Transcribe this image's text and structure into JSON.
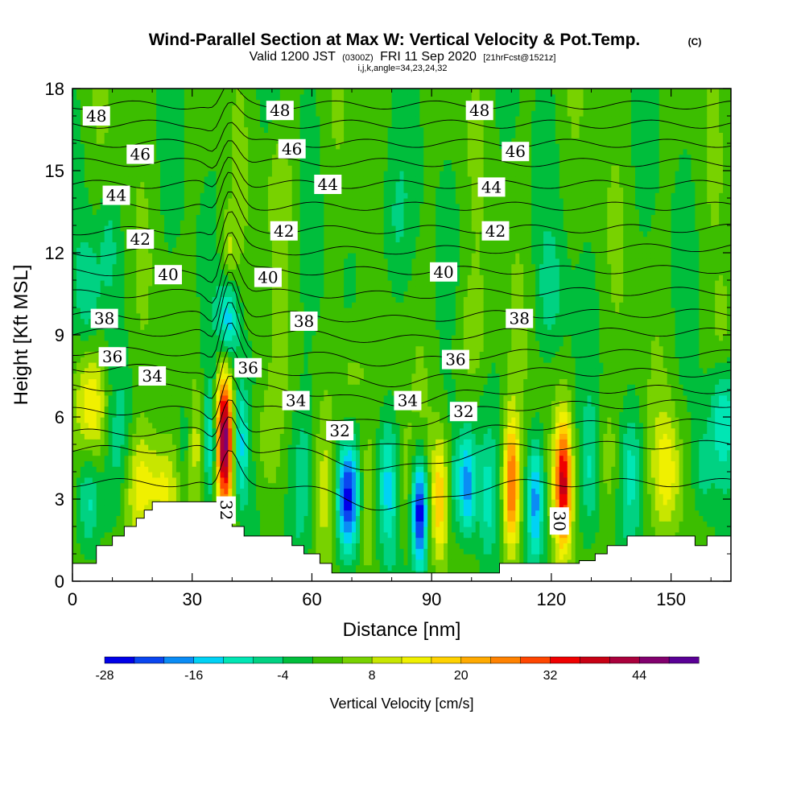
{
  "chart_data": {
    "type": "heatmap",
    "title": "Wind-Parallel Section at Max W: Vertical Velocity & Pot.Temp.",
    "copyright": "(C)",
    "subtitle_main": "Valid 1200 JST",
    "subtitle_utc": "(0300Z)",
    "subtitle_date": "FRI 11 Sep 2020",
    "subtitle_fcst": "[21hrFcst@1521z]",
    "subtitle2": "i,j,k,angle=34,23,24,32",
    "xlabel": "Distance [nm]",
    "ylabel": "Height [Kft MSL]",
    "xlim": [
      0,
      165
    ],
    "ylim": [
      0,
      18
    ],
    "x_ticks": [
      {
        "value": 0,
        "label": "0"
      },
      {
        "value": 30,
        "label": "30"
      },
      {
        "value": 60,
        "label": "60"
      },
      {
        "value": 90,
        "label": "90"
      },
      {
        "value": 120,
        "label": "120"
      },
      {
        "value": 150,
        "label": "150"
      }
    ],
    "y_ticks": [
      {
        "value": 0,
        "label": "0"
      },
      {
        "value": 3,
        "label": "3"
      },
      {
        "value": 6,
        "label": "6"
      },
      {
        "value": 9,
        "label": "9"
      },
      {
        "value": 12,
        "label": "12"
      },
      {
        "value": 15,
        "label": "15"
      },
      {
        "value": 18,
        "label": "18"
      }
    ],
    "colorbar": {
      "label": "Vertical Velocity [cm/s]",
      "min": -28,
      "max": 52,
      "step": 4,
      "tick_labels": [
        {
          "value": -28,
          "label": "-28"
        },
        {
          "value": -16,
          "label": "-16"
        },
        {
          "value": -4,
          "label": "-4"
        },
        {
          "value": 8,
          "label": "8"
        },
        {
          "value": 20,
          "label": "20"
        },
        {
          "value": 32,
          "label": "32"
        },
        {
          "value": 44,
          "label": "44"
        }
      ],
      "colors": [
        "#0000e8",
        "#0a46f0",
        "#0a8cf5",
        "#00d2f5",
        "#00e6b4",
        "#00d282",
        "#00be3c",
        "#3cbe00",
        "#78d200",
        "#c8e600",
        "#f0f000",
        "#ffd200",
        "#ffaa00",
        "#ff8200",
        "#ff4600",
        "#f00000",
        "#c80014",
        "#aa003c",
        "#82006e",
        "#5a0096"
      ]
    },
    "terrain": [
      [
        0,
        0.65
      ],
      [
        6,
        0.65
      ],
      [
        6,
        1.3
      ],
      [
        10,
        1.3
      ],
      [
        10,
        1.65
      ],
      [
        13,
        1.65
      ],
      [
        13,
        2.0
      ],
      [
        16,
        2.0
      ],
      [
        16,
        2.3
      ],
      [
        18,
        2.3
      ],
      [
        18,
        2.6
      ],
      [
        20,
        2.6
      ],
      [
        20,
        2.9
      ],
      [
        38,
        2.9
      ],
      [
        38,
        2.45
      ],
      [
        40,
        2.45
      ],
      [
        40,
        2.0
      ],
      [
        43,
        2.0
      ],
      [
        43,
        1.65
      ],
      [
        55,
        1.65
      ],
      [
        55,
        1.3
      ],
      [
        58,
        1.3
      ],
      [
        58,
        1.0
      ],
      [
        62,
        1.0
      ],
      [
        62,
        0.65
      ],
      [
        65,
        0.65
      ],
      [
        65,
        0.3
      ],
      [
        107,
        0.3
      ],
      [
        107,
        0.65
      ],
      [
        127,
        0.65
      ],
      [
        127,
        0.75
      ],
      [
        131,
        0.75
      ],
      [
        131,
        1.0
      ],
      [
        134,
        1.0
      ],
      [
        134,
        1.3
      ],
      [
        139,
        1.3
      ],
      [
        139,
        1.65
      ],
      [
        156,
        1.65
      ],
      [
        156,
        1.3
      ],
      [
        159,
        1.3
      ],
      [
        159,
        1.65
      ],
      [
        165,
        1.65
      ]
    ],
    "theta_lines": [
      {
        "value": 30,
        "y_left": 3.6,
        "y_right": 3.6
      },
      {
        "value": 31,
        "y_left": 4.8,
        "y_right": 5.0
      },
      {
        "value": 32,
        "y_left": 5.4,
        "y_right": 5.8
      },
      {
        "value": 33,
        "y_left": 6.2,
        "y_right": 6.5
      },
      {
        "value": 34,
        "y_left": 7.1,
        "y_right": 7.0
      },
      {
        "value": 35,
        "y_left": 7.8,
        "y_right": 7.6
      },
      {
        "value": 36,
        "y_left": 8.4,
        "y_right": 8.3
      },
      {
        "value": 37,
        "y_left": 9.1,
        "y_right": 9.1
      },
      {
        "value": 38,
        "y_left": 9.7,
        "y_right": 9.8
      },
      {
        "value": 39,
        "y_left": 10.5,
        "y_right": 10.6
      },
      {
        "value": 40,
        "y_left": 11.3,
        "y_right": 11.4
      },
      {
        "value": 41,
        "y_left": 12.0,
        "y_right": 12.2
      },
      {
        "value": 42,
        "y_left": 12.8,
        "y_right": 12.9
      },
      {
        "value": 43,
        "y_left": 13.7,
        "y_right": 13.7
      },
      {
        "value": 44,
        "y_left": 14.5,
        "y_right": 14.5
      },
      {
        "value": 45,
        "y_left": 15.3,
        "y_right": 15.3
      },
      {
        "value": 46,
        "y_left": 16.0,
        "y_right": 16.0
      },
      {
        "value": 47,
        "y_left": 16.7,
        "y_right": 16.7
      },
      {
        "value": 48,
        "y_left": 17.4,
        "y_right": 17.4
      }
    ],
    "theta_labels": [
      {
        "text": "48",
        "x": 6,
        "y": 17.0
      },
      {
        "text": "48",
        "x": 52,
        "y": 17.2
      },
      {
        "text": "48",
        "x": 102,
        "y": 17.2
      },
      {
        "text": "46",
        "x": 17,
        "y": 15.6
      },
      {
        "text": "46",
        "x": 55,
        "y": 15.8
      },
      {
        "text": "46",
        "x": 111,
        "y": 15.7
      },
      {
        "text": "44",
        "x": 11,
        "y": 14.1
      },
      {
        "text": "44",
        "x": 64,
        "y": 14.5
      },
      {
        "text": "44",
        "x": 105,
        "y": 14.4
      },
      {
        "text": "42",
        "x": 17,
        "y": 12.5
      },
      {
        "text": "42",
        "x": 53,
        "y": 12.8
      },
      {
        "text": "42",
        "x": 106,
        "y": 12.8
      },
      {
        "text": "40",
        "x": 24,
        "y": 11.2
      },
      {
        "text": "40",
        "x": 49,
        "y": 11.1
      },
      {
        "text": "40",
        "x": 93,
        "y": 11.3
      },
      {
        "text": "38",
        "x": 8,
        "y": 9.6
      },
      {
        "text": "38",
        "x": 58,
        "y": 9.5
      },
      {
        "text": "38",
        "x": 112,
        "y": 9.6
      },
      {
        "text": "36",
        "x": 10,
        "y": 8.2
      },
      {
        "text": "36",
        "x": 44,
        "y": 7.8
      },
      {
        "text": "36",
        "x": 96,
        "y": 8.1
      },
      {
        "text": "34",
        "x": 20,
        "y": 7.5
      },
      {
        "text": "34",
        "x": 56,
        "y": 6.6
      },
      {
        "text": "34",
        "x": 84,
        "y": 6.6
      },
      {
        "text": "32",
        "x": 67,
        "y": 5.5
      },
      {
        "text": "32",
        "x": 98,
        "y": 6.2
      },
      {
        "text": "32",
        "x": 38.5,
        "y": 2.6
      },
      {
        "text": "30",
        "x": 122,
        "y": 2.2
      }
    ],
    "w_features": [
      {
        "x": 38.0,
        "y": 5.2,
        "sx": 1.6,
        "sy": 1.8,
        "amp": 48
      },
      {
        "x": 35.0,
        "y": 5.0,
        "sx": 1.5,
        "sy": 1.6,
        "amp": -16
      },
      {
        "x": 42.0,
        "y": 5.0,
        "sx": 1.5,
        "sy": 1.6,
        "amp": -14
      },
      {
        "x": 39.0,
        "y": 9.5,
        "sx": 1.8,
        "sy": 1.2,
        "amp": -16
      },
      {
        "x": 39.0,
        "y": 12.0,
        "sx": 1.6,
        "sy": 1.0,
        "amp": 8
      },
      {
        "x": 31.0,
        "y": 5.0,
        "sx": 1.5,
        "sy": 1.5,
        "amp": 8
      },
      {
        "x": 28.0,
        "y": 5.2,
        "sx": 1.6,
        "sy": 1.5,
        "amp": -8
      },
      {
        "x": 17.0,
        "y": 3.5,
        "sx": 3.0,
        "sy": 1.5,
        "amp": 14
      },
      {
        "x": 23.0,
        "y": 3.3,
        "sx": 2.5,
        "sy": 1.2,
        "amp": 12
      },
      {
        "x": 5.0,
        "y": 6.5,
        "sx": 3.0,
        "sy": 1.5,
        "amp": 14
      },
      {
        "x": 4.0,
        "y": 3.0,
        "sx": 2.0,
        "sy": 1.5,
        "amp": -14
      },
      {
        "x": 4.0,
        "y": 10.5,
        "sx": 2.0,
        "sy": 1.5,
        "amp": -8
      },
      {
        "x": 12.0,
        "y": 5.0,
        "sx": 2.5,
        "sy": 1.8,
        "amp": -6
      },
      {
        "x": 48.0,
        "y": 5.0,
        "sx": 2.5,
        "sy": 1.8,
        "amp": 6
      },
      {
        "x": 58.0,
        "y": 4.0,
        "sx": 2.5,
        "sy": 2.0,
        "amp": -8
      },
      {
        "x": 63.0,
        "y": 3.5,
        "sx": 2.0,
        "sy": 1.8,
        "amp": 6
      },
      {
        "x": 69.0,
        "y": 3.0,
        "sx": 2.0,
        "sy": 1.4,
        "amp": -26
      },
      {
        "x": 74.0,
        "y": 3.2,
        "sx": 1.5,
        "sy": 1.5,
        "amp": 8
      },
      {
        "x": 79.0,
        "y": 3.5,
        "sx": 1.8,
        "sy": 1.6,
        "amp": -12
      },
      {
        "x": 83.0,
        "y": 3.5,
        "sx": 1.5,
        "sy": 1.6,
        "amp": 6
      },
      {
        "x": 87.0,
        "y": 2.5,
        "sx": 1.4,
        "sy": 1.4,
        "amp": -30
      },
      {
        "x": 92.0,
        "y": 3.0,
        "sx": 1.5,
        "sy": 1.6,
        "amp": 18
      },
      {
        "x": 96.0,
        "y": 3.5,
        "sx": 1.5,
        "sy": 1.4,
        "amp": -8
      },
      {
        "x": 99.0,
        "y": 3.5,
        "sx": 1.5,
        "sy": 1.4,
        "amp": -20
      },
      {
        "x": 104.0,
        "y": 3.0,
        "sx": 1.5,
        "sy": 1.5,
        "amp": -8
      },
      {
        "x": 110.0,
        "y": 3.5,
        "sx": 1.4,
        "sy": 1.7,
        "amp": 28
      },
      {
        "x": 116.0,
        "y": 3.0,
        "sx": 1.4,
        "sy": 1.5,
        "amp": -18
      },
      {
        "x": 123.0,
        "y": 3.6,
        "sx": 1.5,
        "sy": 1.6,
        "amp": 34
      },
      {
        "x": 130.0,
        "y": 4.0,
        "sx": 2.0,
        "sy": 1.6,
        "amp": -8
      },
      {
        "x": 134.0,
        "y": 4.5,
        "sx": 2.0,
        "sy": 1.5,
        "amp": 6
      },
      {
        "x": 140.0,
        "y": 4.0,
        "sx": 2.0,
        "sy": 1.5,
        "amp": -8
      },
      {
        "x": 149.0,
        "y": 4.0,
        "sx": 2.5,
        "sy": 1.5,
        "amp": 12
      },
      {
        "x": 158.0,
        "y": 4.0,
        "sx": 2.0,
        "sy": 1.5,
        "amp": -8
      },
      {
        "x": 163.0,
        "y": 6.0,
        "sx": 2.0,
        "sy": 1.5,
        "amp": -10
      },
      {
        "x": 163.0,
        "y": 9.0,
        "sx": 2.0,
        "sy": 1.5,
        "amp": 6
      },
      {
        "x": 70.0,
        "y": 7.5,
        "sx": 3.0,
        "sy": 1.5,
        "amp": 7
      },
      {
        "x": 120.0,
        "y": 10.5,
        "sx": 2.5,
        "sy": 1.5,
        "amp": -6
      },
      {
        "x": 9.0,
        "y": 12.5,
        "sx": 2.0,
        "sy": 1.5,
        "amp": -6
      },
      {
        "x": 52.0,
        "y": 14.5,
        "sx": 2.5,
        "sy": 1.5,
        "amp": 6
      },
      {
        "x": 80.0,
        "y": 13.0,
        "sx": 3.0,
        "sy": 2.0,
        "amp": -6
      },
      {
        "x": 100.0,
        "y": 9.0,
        "sx": 3.0,
        "sy": 1.5,
        "amp": 6
      }
    ]
  }
}
